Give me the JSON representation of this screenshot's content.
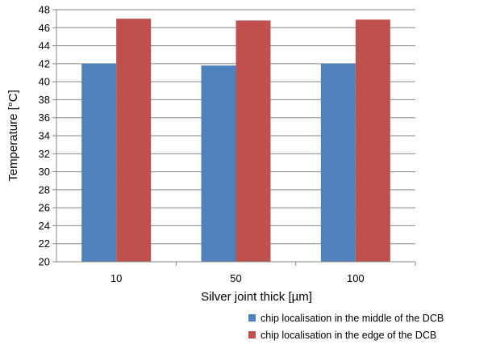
{
  "chart_data": {
    "type": "bar",
    "categories": [
      "10",
      "50",
      "100"
    ],
    "series": [
      {
        "name": "chip localisation in the middle of the DCB",
        "values": [
          42.0,
          41.8,
          42.0
        ],
        "color": "#4F81BD"
      },
      {
        "name": "chip localisation in the edge of the DCB",
        "values": [
          47.0,
          46.8,
          46.9
        ],
        "color": "#C0504D"
      }
    ],
    "xlabel": "Silver joint thick [µm]",
    "ylabel": "Temperature [°C]",
    "ylim": [
      20,
      48
    ],
    "yticks": [
      "20",
      "22",
      "24",
      "26",
      "28",
      "30",
      "32",
      "34",
      "36",
      "38",
      "40",
      "42",
      "44",
      "46",
      "48"
    ],
    "grid": true,
    "legend_position": "bottom-right"
  }
}
